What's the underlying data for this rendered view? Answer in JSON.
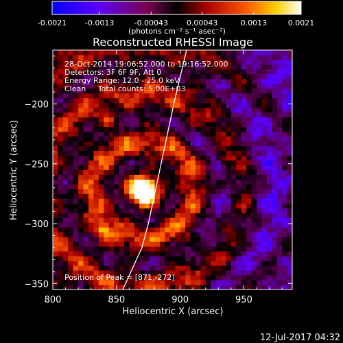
{
  "chart_data": {
    "type": "heatmap",
    "title": "Reconstructed RHESSI Image",
    "xlabel": "Heliocentric X (arcsec)",
    "ylabel": "Heliocentric Y (arcsec)",
    "xlim": [
      800,
      988
    ],
    "ylim": [
      -355,
      -155
    ],
    "x_ticks": [
      800,
      850,
      900,
      950
    ],
    "y_ticks": [
      -200,
      -250,
      -300,
      -350
    ],
    "colorbar": {
      "range": [
        -0.0021,
        0.0021
      ],
      "tick_labels": [
        "-0.0021",
        "-0.0013",
        "-0.00043",
        "0.00043",
        "0.0013",
        "0.0021"
      ],
      "tick_values": [
        -0.0021,
        -0.0013,
        -0.00043,
        0.00043,
        0.0013,
        0.0021
      ],
      "units": "(photons cm⁻² s⁻¹ asec⁻²)",
      "colors": [
        "#0000ff",
        "#ff0000",
        "#ffff00",
        "#ffffff"
      ]
    },
    "annotations": [
      "28-Oct-2014 19:06:52.000 to 19:16:52.000",
      "Detectors: 3F 6F 9F, Att 0",
      "Energy Range: 12.0 - 25.0 keV",
      "Clean     Total counts: 5.00E+03"
    ],
    "peak_label": "Position of Peak = [871,-272]",
    "peak": {
      "x": 871,
      "y": -272,
      "value": 0.0021
    },
    "secondary_sources": [
      {
        "x": 840,
        "y": -305,
        "value": 0.0012
      },
      {
        "x": 935,
        "y": -247,
        "value": 0.0011
      },
      {
        "x": 843,
        "y": -213,
        "value": 0.0009
      }
    ],
    "limb_curve": [
      [
        905,
        -155
      ],
      [
        895,
        -200
      ],
      [
        885,
        -250
      ],
      [
        875,
        -300
      ],
      [
        870,
        -320
      ],
      [
        855,
        -355
      ]
    ]
  },
  "footer": {
    "date": "12-Jul-2017 04:32"
  }
}
